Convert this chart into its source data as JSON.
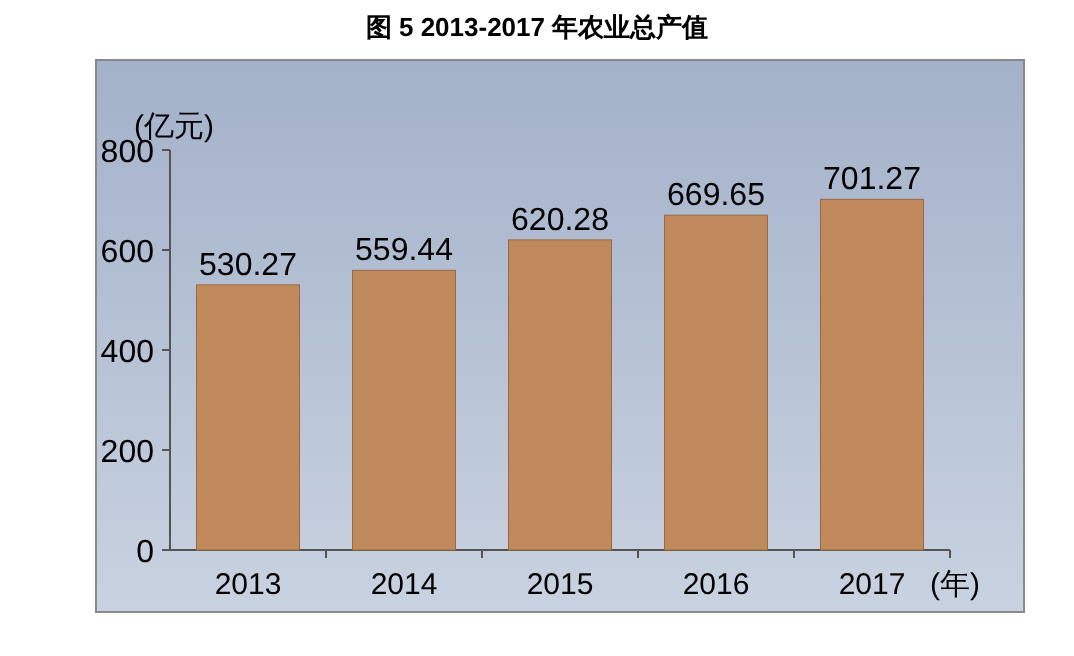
{
  "chart_data": {
    "type": "bar",
    "title": "图 5   2013-2017 年农业总产值",
    "ylabel": "(亿元)",
    "xlabel": "(年)",
    "categories": [
      "2013",
      "2014",
      "2015",
      "2016",
      "2017"
    ],
    "values": [
      530.27,
      559.44,
      620.28,
      669.65,
      701.27
    ],
    "color": "#c08a5c",
    "ylim": [
      0,
      800
    ],
    "yticks": [
      0,
      200,
      400,
      600,
      800
    ],
    "data_labels": true
  }
}
